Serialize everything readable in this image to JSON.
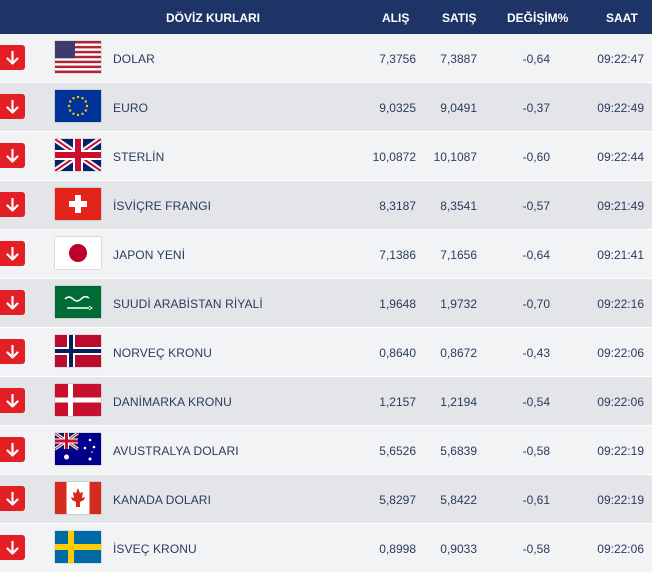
{
  "header": {
    "title": "DÖVİZ KURLARI",
    "buy": "ALIŞ",
    "sell": "SATIŞ",
    "change": "DEĞİŞİM%",
    "time": "SAAT"
  },
  "colors": {
    "header_bg": "#1e3366",
    "arrow_down": "#e31e24"
  },
  "rows": [
    {
      "flag": "us-flag-icon",
      "name": "DOLAR",
      "buy": "7,3756",
      "sell": "7,3887",
      "change": "-0,64",
      "time": "09:22:47",
      "trend": "down-arrow-icon"
    },
    {
      "flag": "eu-flag-icon",
      "name": "EURO",
      "buy": "9,0325",
      "sell": "9,0491",
      "change": "-0,37",
      "time": "09:22:49",
      "trend": "down-arrow-icon"
    },
    {
      "flag": "uk-flag-icon",
      "name": "STERLİN",
      "buy": "10,0872",
      "sell": "10,1087",
      "change": "-0,60",
      "time": "09:22:44",
      "trend": "down-arrow-icon"
    },
    {
      "flag": "swiss-flag-icon",
      "name": "İSVİÇRE FRANGI",
      "buy": "8,3187",
      "sell": "8,3541",
      "change": "-0,57",
      "time": "09:21:49",
      "trend": "down-arrow-icon"
    },
    {
      "flag": "japan-flag-icon",
      "name": "JAPON YENİ",
      "buy": "7,1386",
      "sell": "7,1656",
      "change": "-0,64",
      "time": "09:21:41",
      "trend": "down-arrow-icon"
    },
    {
      "flag": "saudi-flag-icon",
      "name": "SUUDİ ARABİSTAN RİYALİ",
      "buy": "1,9648",
      "sell": "1,9732",
      "change": "-0,70",
      "time": "09:22:16",
      "trend": "down-arrow-icon"
    },
    {
      "flag": "norway-flag-icon",
      "name": "NORVEÇ KRONU",
      "buy": "0,8640",
      "sell": "0,8672",
      "change": "-0,43",
      "time": "09:22:06",
      "trend": "down-arrow-icon"
    },
    {
      "flag": "denmark-flag-icon",
      "name": "DANİMARKA KRONU",
      "buy": "1,2157",
      "sell": "1,2194",
      "change": "-0,54",
      "time": "09:22:06",
      "trend": "down-arrow-icon"
    },
    {
      "flag": "australia-flag-icon",
      "name": "AVUSTRALYA DOLARI",
      "buy": "5,6526",
      "sell": "5,6839",
      "change": "-0,58",
      "time": "09:22:19",
      "trend": "down-arrow-icon"
    },
    {
      "flag": "canada-flag-icon",
      "name": "KANADA DOLARI",
      "buy": "5,8297",
      "sell": "5,8422",
      "change": "-0,61",
      "time": "09:22:19",
      "trend": "down-arrow-icon"
    },
    {
      "flag": "sweden-flag-icon",
      "name": "İSVEÇ KRONU",
      "buy": "0,8998",
      "sell": "0,9033",
      "change": "-0,58",
      "time": "09:22:06",
      "trend": "down-arrow-icon"
    }
  ]
}
